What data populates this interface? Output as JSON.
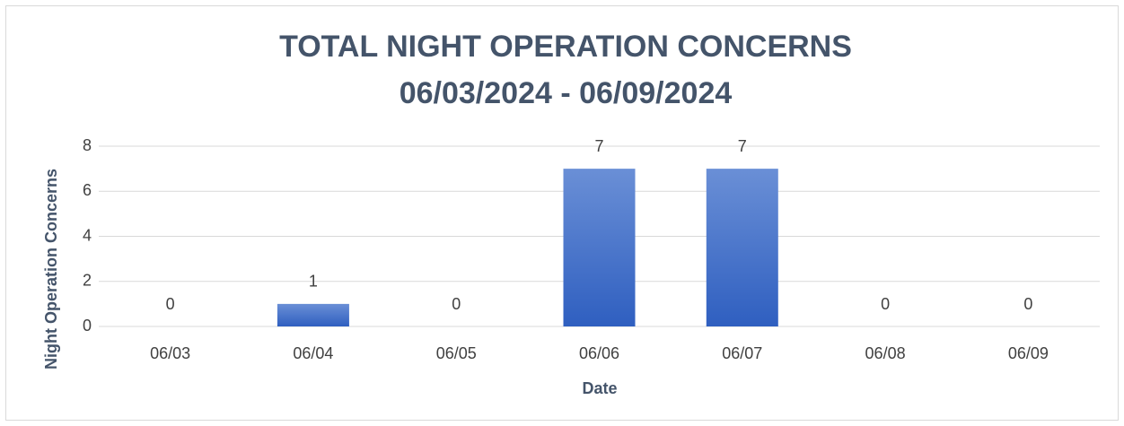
{
  "chart_data": {
    "type": "bar",
    "title": "TOTAL NIGHT OPERATION CONCERNS",
    "subtitle": "06/03/2024 - 06/09/2024",
    "x_label": "Date",
    "y_label": "Night Operation Concerns",
    "categories": [
      "06/03",
      "06/04",
      "06/05",
      "06/06",
      "06/07",
      "06/08",
      "06/09"
    ],
    "values": [
      0,
      1,
      0,
      7,
      7,
      0,
      0
    ],
    "color": "#4472c4",
    "ylim": [
      0,
      8
    ],
    "yticks": [
      0,
      2,
      4,
      6,
      8
    ],
    "grid": true
  }
}
